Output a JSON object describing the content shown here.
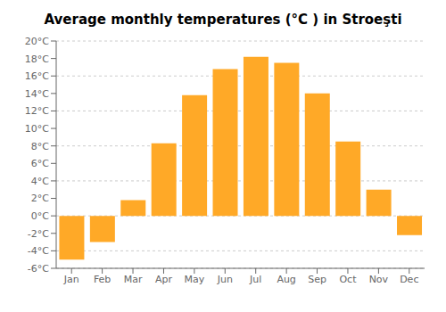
{
  "chart_data": {
    "type": "bar",
    "title": "Average monthly temperatures (°C ) in Stroeşti",
    "categories": [
      "Jan",
      "Feb",
      "Mar",
      "Apr",
      "May",
      "Jun",
      "Jul",
      "Aug",
      "Sep",
      "Oct",
      "Nov",
      "Dec"
    ],
    "values": [
      -5.0,
      -3.0,
      1.8,
      8.3,
      13.8,
      16.8,
      18.2,
      17.5,
      14.0,
      8.5,
      3.0,
      -2.2
    ],
    "color": "#FFA927",
    "ylim": [
      -6,
      20
    ],
    "yticks": [
      {
        "value": -6,
        "label": "-6°C"
      },
      {
        "value": -4,
        "label": "-4°C"
      },
      {
        "value": -2,
        "label": "-2°C"
      },
      {
        "value": 0,
        "label": "0°C"
      },
      {
        "value": 2,
        "label": "2°C"
      },
      {
        "value": 4,
        "label": "4°C"
      },
      {
        "value": 6,
        "label": "6°C"
      },
      {
        "value": 8,
        "label": "8°C"
      },
      {
        "value": 10,
        "label": "10°C"
      },
      {
        "value": 12,
        "label": "12°C"
      },
      {
        "value": 14,
        "label": "14°C"
      },
      {
        "value": 16,
        "label": "16°C"
      },
      {
        "value": 18,
        "label": "18°C"
      },
      {
        "value": 20,
        "label": "20°C"
      }
    ],
    "grid": true
  }
}
